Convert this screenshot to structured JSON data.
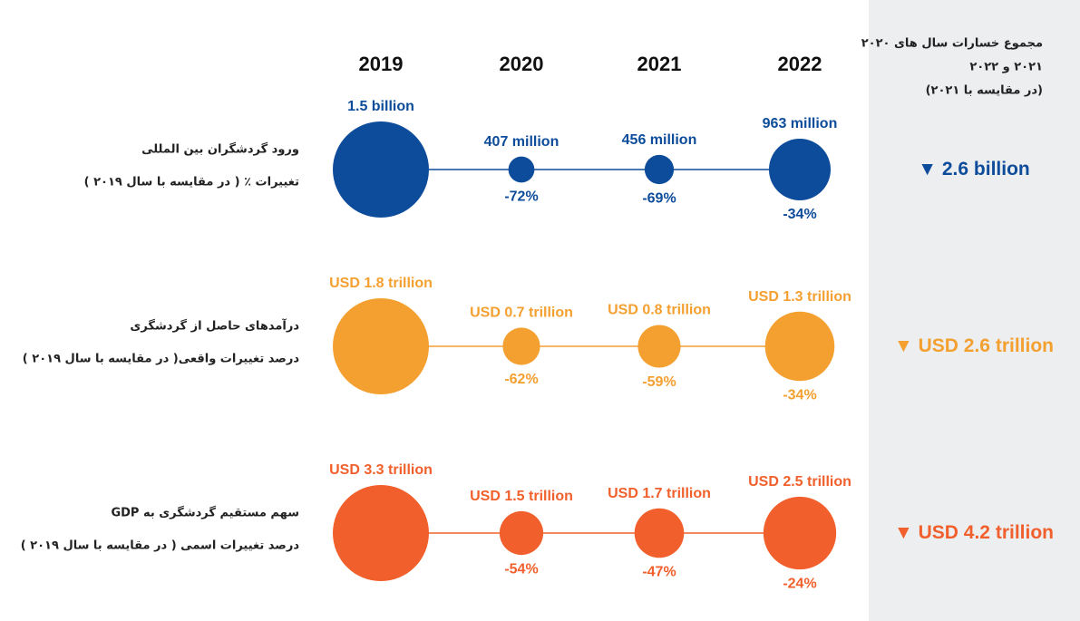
{
  "years": [
    "2019",
    "2020",
    "2021",
    "2022"
  ],
  "panel_title": [
    "مجموع خسارات سال های ۲۰۲۰",
    "۲۰۲۱ و ۲۰۲۲",
    "(در مقایسه با ۲۰۲۱)"
  ],
  "chart_data": [
    {
      "type": "bubble",
      "title": [
        "ورود گردشگران بین المللی",
        "تغییرات ٪ ( در مقایسه با سال ۲۰۱۹ )"
      ],
      "color": "#0d4c9a",
      "values": [
        1.5,
        0.407,
        0.456,
        0.963
      ],
      "value_labels": [
        "1.5 billion",
        "407 million",
        "456 million",
        "963 million"
      ],
      "changes": [
        null,
        "-72%",
        "-69%",
        "-34%"
      ],
      "total": "2.6 billion"
    },
    {
      "type": "bubble",
      "title": [
        "درآمدهای حاصل از گردشگری",
        "درصد تغییرات واقعی( در مقایسه با سال ۲۰۱۹ )"
      ],
      "color": "#f4a030",
      "values": [
        1.8,
        0.7,
        0.8,
        1.3
      ],
      "value_labels": [
        "USD 1.8 trillion",
        "USD 0.7 trillion",
        "USD 0.8 trillion",
        "USD 1.3 trillion"
      ],
      "changes": [
        null,
        "-62%",
        "-59%",
        "-34%"
      ],
      "total": "USD 2.6 trillion"
    },
    {
      "type": "bubble",
      "title": [
        "سهم مستقیم گردشگری به GDP",
        "درصد تغییرات اسمی ( در مقایسه با سال ۲۰۱۹ )"
      ],
      "color": "#f1602c",
      "values": [
        3.3,
        1.5,
        1.7,
        2.5
      ],
      "value_labels": [
        "USD 3.3 trillion",
        "USD 1.5 trillion",
        "USD 1.7 trillion",
        "USD 2.5 trillion"
      ],
      "changes": [
        null,
        "-54%",
        "-47%",
        "-24%"
      ],
      "total": "USD 4.2 trillion"
    }
  ]
}
